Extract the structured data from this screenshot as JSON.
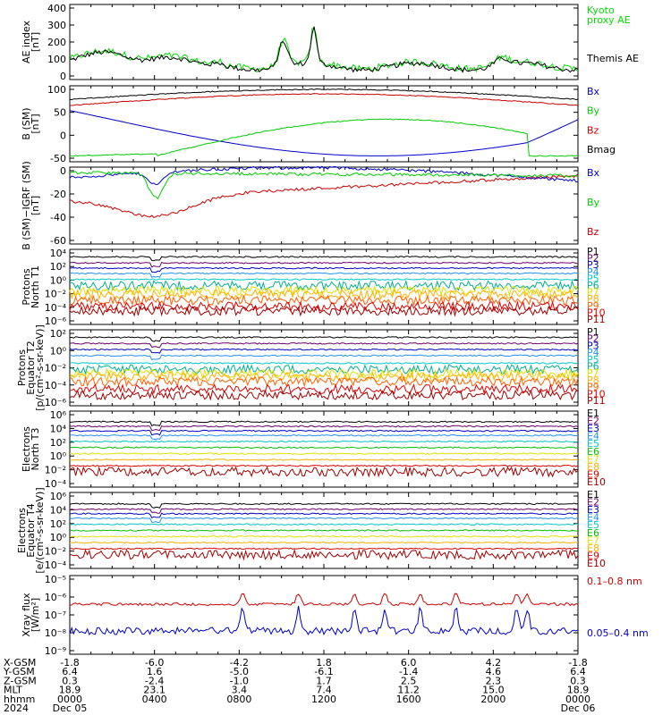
{
  "colors": {
    "black": "#000000",
    "red": "#cc0000",
    "green": "#00cc00",
    "blue": "#0000cc",
    "kyoto": "#00dd00"
  },
  "chart_data": [
    {
      "type": "line",
      "ylabel": "AE index\n[nT]",
      "ylim": [
        0,
        400
      ],
      "yticks": [
        "0",
        "100",
        "200",
        "300",
        "400"
      ],
      "labels": [
        {
          "text": "Kyoto\nproxy AE",
          "color": "#00dd00"
        },
        {
          "text": "Themis AE",
          "color": "#000000"
        }
      ]
    },
    {
      "type": "line",
      "ylabel": "B (SM)\n[nT]",
      "ylim": [
        -55,
        115
      ],
      "yticks": [
        "-50",
        "0",
        "50",
        "100"
      ],
      "labels": [
        {
          "text": "Bx",
          "color": "#0000cc"
        },
        {
          "text": "By",
          "color": "#00cc00"
        },
        {
          "text": "Bz",
          "color": "#cc0000"
        },
        {
          "text": "Bmag",
          "color": "#000000"
        }
      ]
    },
    {
      "type": "line",
      "ylabel": "B (SM)−IGRF (SM)\n[nT]",
      "ylim": [
        -65,
        15
      ],
      "yticks": [
        "-60",
        "-40",
        "-20",
        "0"
      ],
      "labels": [
        {
          "text": "Bx",
          "color": "#0000cc"
        },
        {
          "text": "By",
          "color": "#00cc00"
        },
        {
          "text": "Bz",
          "color": "#cc0000"
        }
      ]
    },
    {
      "type": "line",
      "ylabel": "Protons\nNorth T1",
      "yticks": [
        "10⁴",
        "10²",
        "10⁰",
        "10⁻²",
        "10⁻⁴",
        "10⁻⁶"
      ],
      "labels": [
        {
          "text": "P1",
          "color": "#000000"
        },
        {
          "text": "P2",
          "color": "#6a006a"
        },
        {
          "text": "P3",
          "color": "#0000cc"
        },
        {
          "text": "P4",
          "color": "#2090ff"
        },
        {
          "text": "P5",
          "color": "#00c8c8"
        },
        {
          "text": "P6",
          "color": "#00b090"
        },
        {
          "text": "P7",
          "color": "#e0e000"
        },
        {
          "text": "P8",
          "color": "#ffb000"
        },
        {
          "text": "P9",
          "color": "#ff6000"
        },
        {
          "text": "P10",
          "color": "#e00000"
        },
        {
          "text": "P11",
          "color": "#a00000"
        }
      ]
    },
    {
      "type": "line",
      "ylabel": "Protons\nEquator T2\n[p/(cm²-s-sr-keV)]",
      "yticks": [
        "10²",
        "10⁰",
        "10⁻²",
        "10⁻⁴",
        "10⁻⁶"
      ],
      "labels": [
        {
          "text": "P1",
          "color": "#000000"
        },
        {
          "text": "P2",
          "color": "#6a006a"
        },
        {
          "text": "P3",
          "color": "#0000cc"
        },
        {
          "text": "P4",
          "color": "#2090ff"
        },
        {
          "text": "P5",
          "color": "#00c8c8"
        },
        {
          "text": "P6",
          "color": "#00b090"
        },
        {
          "text": "P7",
          "color": "#e0e000"
        },
        {
          "text": "P8",
          "color": "#ffb000"
        },
        {
          "text": "P9",
          "color": "#ff6000"
        },
        {
          "text": "P10",
          "color": "#e00000"
        },
        {
          "text": "P11",
          "color": "#a00000"
        }
      ]
    },
    {
      "type": "line",
      "ylabel": "Electrons\nNorth T3",
      "yticks": [
        "10⁶",
        "10⁴",
        "10²",
        "10⁰",
        "10⁻²",
        "10⁻⁴"
      ],
      "labels": [
        {
          "text": "E1",
          "color": "#000000"
        },
        {
          "text": "E2",
          "color": "#6a006a"
        },
        {
          "text": "E3",
          "color": "#0000cc"
        },
        {
          "text": "E4",
          "color": "#2090ff"
        },
        {
          "text": "E5",
          "color": "#00c8c8"
        },
        {
          "text": "E6",
          "color": "#00c000"
        },
        {
          "text": "E7",
          "color": "#e0e000"
        },
        {
          "text": "E8",
          "color": "#ffb000"
        },
        {
          "text": "E9",
          "color": "#e00000"
        },
        {
          "text": "E10",
          "color": "#a00000"
        }
      ]
    },
    {
      "type": "line",
      "ylabel": "Electrons\nEquator T4\n[e/(cm²-s-sr-keV)]",
      "yticks": [
        "10⁶",
        "10⁴",
        "10²",
        "10⁰",
        "10⁻²",
        "10⁻⁴"
      ],
      "labels": [
        {
          "text": "E1",
          "color": "#000000"
        },
        {
          "text": "E2",
          "color": "#6a006a"
        },
        {
          "text": "E3",
          "color": "#0000cc"
        },
        {
          "text": "E4",
          "color": "#2090ff"
        },
        {
          "text": "E5",
          "color": "#00c8c8"
        },
        {
          "text": "E6",
          "color": "#00c000"
        },
        {
          "text": "E7",
          "color": "#e0e000"
        },
        {
          "text": "E8",
          "color": "#ffb000"
        },
        {
          "text": "E9",
          "color": "#e00000"
        },
        {
          "text": "E10",
          "color": "#a00000"
        }
      ]
    },
    {
      "type": "line",
      "ylabel": "Xray flux\n[W/m²]",
      "yticks": [
        "10⁻⁵",
        "10⁻⁶",
        "10⁻⁷",
        "10⁻⁸",
        "10⁻⁹"
      ],
      "labels": [
        {
          "text": "0.1–0.8 nm",
          "color": "#cc0000"
        },
        {
          "text": "0.05–0.4 nm",
          "color": "#0000cc"
        }
      ]
    }
  ],
  "xaxis": {
    "rows": [
      {
        "label": "X-GSM",
        "values": [
          "-1.8",
          "-6.0",
          "-4.2",
          "1.8",
          "6.0",
          "4.2",
          "-1.8"
        ]
      },
      {
        "label": "Y-GSM",
        "values": [
          "6.4",
          "1.6",
          "-5.0",
          "-6.1",
          "-1.4",
          "4.6",
          "6.4"
        ]
      },
      {
        "label": "Z-GSM",
        "values": [
          "0.3",
          "-2.4",
          "-1.0",
          "1.7",
          "2.5",
          "2.3",
          "0.3"
        ]
      },
      {
        "label": "MLT",
        "values": [
          "18.9",
          "23.1",
          "3.4",
          "7.4",
          "11.2",
          "15.0",
          "18.9"
        ]
      },
      {
        "label": "hhmm",
        "values": [
          "0000",
          "0400",
          "0800",
          "1200",
          "1600",
          "2000",
          "0000"
        ]
      },
      {
        "label": "2024",
        "values": [
          "Dec 05",
          "",
          "",
          "",
          "",
          "",
          "Dec 06"
        ]
      }
    ]
  }
}
